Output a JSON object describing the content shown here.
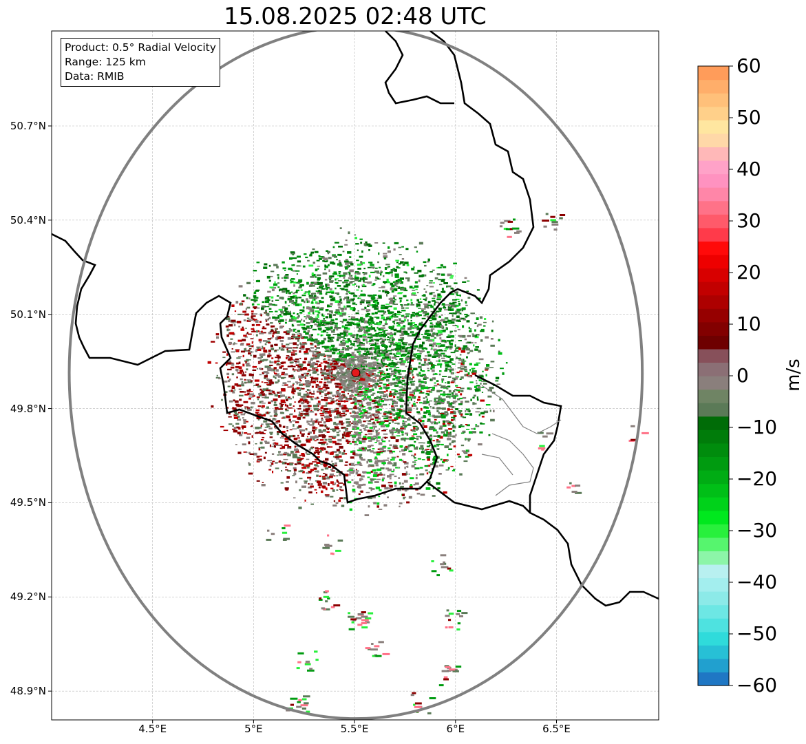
{
  "title": "15.08.2025 02:48 UTC",
  "info_box": {
    "product": "Product: 0.5° Radial Velocity",
    "range": "Range: 125 km",
    "data": "Data: RMIB"
  },
  "map": {
    "lon_range": [
      4.0,
      7.0
    ],
    "lat_range": [
      48.8,
      50.98
    ],
    "radar_site": {
      "lon": 5.506,
      "lat": 49.914,
      "marker_color": "#e31a1c"
    },
    "range_ring_km": 125,
    "lat_ticks": [
      "50.7°N",
      "50.4°N",
      "50.1°N",
      "49.8°N",
      "49.5°N",
      "49.2°N",
      "48.9°N"
    ],
    "lat_tick_values": [
      50.7,
      50.4,
      50.1,
      49.8,
      49.5,
      49.2,
      48.9
    ],
    "lon_ticks": [
      "4.5°E",
      "5°E",
      "5.5°E",
      "6°E",
      "6.5°E"
    ],
    "lon_tick_values": [
      4.5,
      5.0,
      5.5,
      6.0,
      6.5
    ],
    "grid": true,
    "colors": {
      "border": "#000000",
      "province_border": "#808080",
      "range_ring": "#808080"
    }
  },
  "colorbar": {
    "label": "m/s",
    "vmin": -60,
    "vmax": 60,
    "ticks": [
      "60",
      "50",
      "40",
      "30",
      "20",
      "10",
      "0",
      "−10",
      "−20",
      "−30",
      "−40",
      "−50",
      "−60"
    ],
    "tick_values": [
      60,
      50,
      40,
      30,
      20,
      10,
      0,
      -10,
      -20,
      -30,
      -40,
      -50,
      -60
    ],
    "colors_bottom_to_top": [
      "#1f77c4",
      "#21a0cf",
      "#27c0d6",
      "#2fdbdb",
      "#4ee2e0",
      "#6de7e4",
      "#8ceae8",
      "#a3eeee",
      "#b8f0f0",
      "#8cf5a8",
      "#56f56e",
      "#28f03c",
      "#00e81e",
      "#00d21a",
      "#00bf17",
      "#00ac14",
      "#009b10",
      "#008c0d",
      "#007c0a",
      "#006c07",
      "#5b7a57",
      "#6f8464",
      "#8a7f7c",
      "#8b6f75",
      "#87505a",
      "#6e0000",
      "#820000",
      "#960000",
      "#ad0000",
      "#c20000",
      "#d80000",
      "#ee0000",
      "#ff0a0a",
      "#ff3a4a",
      "#ff5a6a",
      "#ff7288",
      "#ff86a8",
      "#ff92c0",
      "#ffa2c8",
      "#ffb8b8",
      "#ffd8a8",
      "#ffe6a0",
      "#ffd08a",
      "#ffc07a",
      "#ffae6a",
      "#ff9c5a"
    ]
  }
}
